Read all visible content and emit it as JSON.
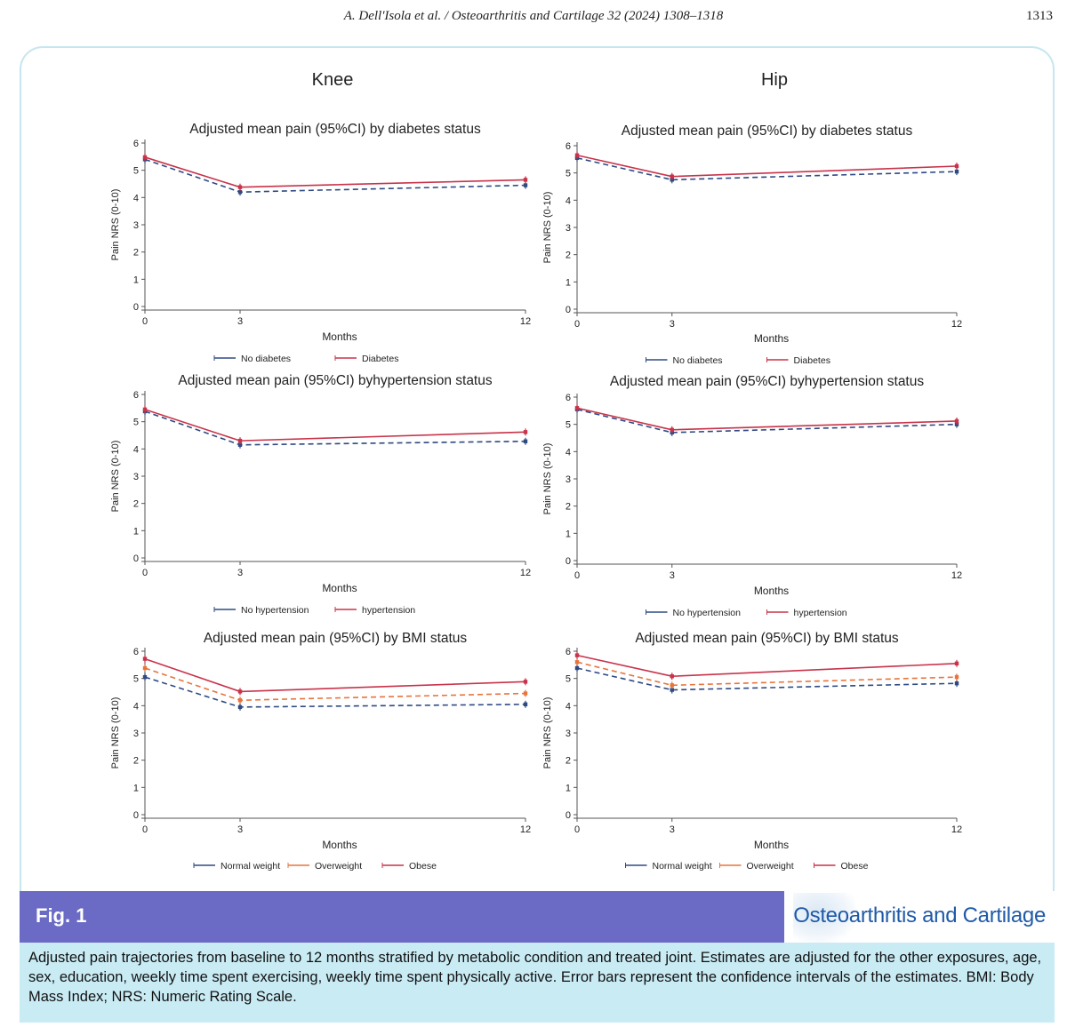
{
  "header": {
    "running_head": "A. Dell'Isola et al. / Osteoarthritis and Cartilage 32 (2024) 1308–1318",
    "page_number": "1313"
  },
  "figure": {
    "label": "Fig. 1",
    "journal": "Osteoarthritis and Cartilage",
    "caption": "Adjusted pain trajectories from baseline to 12 months stratified by metabolic condition and treated joint. Estimates are adjusted for the other exposures, age, sex, education, weekly time spent exercising, weekly time spent physically active. Error bars represent the confidence intervals of the estimates. BMI: Body Mass Index; NRS: Numeric Rating Scale.",
    "column_titles": [
      "Knee",
      "Hip"
    ]
  },
  "colors": {
    "blue": "#2e4a82",
    "red": "#c8334a",
    "orange": "#e8743b"
  },
  "chart_data": [
    {
      "id": "knee-diabetes",
      "type": "line",
      "joint": "Knee",
      "title": "Adjusted mean pain (95%CI) by diabetes status",
      "xlabel": "Months",
      "ylabel": "Pain NRS (0-10)",
      "x": [
        0,
        3,
        12
      ],
      "x_ticks": [
        "0",
        "3",
        "12"
      ],
      "y_ticks": [
        "0",
        "1",
        "2",
        "3",
        "4",
        "5",
        "6"
      ],
      "ylim": [
        0,
        6
      ],
      "series": [
        {
          "name": "No diabetes",
          "color": "#2e4a82",
          "dash": true,
          "values": [
            5.4,
            4.2,
            4.45
          ]
        },
        {
          "name": "Diabetes",
          "color": "#c8334a",
          "dash": false,
          "values": [
            5.48,
            4.38,
            4.65
          ]
        }
      ]
    },
    {
      "id": "hip-diabetes",
      "type": "line",
      "joint": "Hip",
      "title": "Adjusted mean pain (95%CI) by diabetes status",
      "xlabel": "Months",
      "ylabel": "Pain NRS (0-10)",
      "x": [
        0,
        3,
        12
      ],
      "x_ticks": [
        "0",
        "3",
        "12"
      ],
      "y_ticks": [
        "0",
        "1",
        "2",
        "3",
        "4",
        "5",
        "6"
      ],
      "ylim": [
        0,
        6
      ],
      "series": [
        {
          "name": "No diabetes",
          "color": "#2e4a82",
          "dash": true,
          "values": [
            5.55,
            4.75,
            5.05
          ]
        },
        {
          "name": "Diabetes",
          "color": "#c8334a",
          "dash": false,
          "values": [
            5.65,
            4.87,
            5.25
          ]
        }
      ]
    },
    {
      "id": "knee-hypertension",
      "type": "line",
      "joint": "Knee",
      "title": "Adjusted mean pain (95%CI) byhypertension status",
      "xlabel": "Months",
      "ylabel": "Pain NRS (0-10)",
      "x": [
        0,
        3,
        12
      ],
      "x_ticks": [
        "0",
        "3",
        "12"
      ],
      "y_ticks": [
        "0",
        "1",
        "2",
        "3",
        "4",
        "5",
        "6"
      ],
      "ylim": [
        0,
        6
      ],
      "series": [
        {
          "name": "No hypertension",
          "color": "#2e4a82",
          "dash": true,
          "values": [
            5.38,
            4.15,
            4.28
          ]
        },
        {
          "name": "hypertension",
          "color": "#c8334a",
          "dash": false,
          "values": [
            5.45,
            4.3,
            4.62
          ]
        }
      ]
    },
    {
      "id": "hip-hypertension",
      "type": "line",
      "joint": "Hip",
      "title": "Adjusted mean pain (95%CI) byhypertension status",
      "xlabel": "Months",
      "ylabel": "Pain NRS (0-10)",
      "x": [
        0,
        3,
        12
      ],
      "x_ticks": [
        "0",
        "3",
        "12"
      ],
      "y_ticks": [
        "0",
        "1",
        "2",
        "3",
        "4",
        "5",
        "6"
      ],
      "ylim": [
        0,
        6
      ],
      "series": [
        {
          "name": "No hypertension",
          "color": "#2e4a82",
          "dash": true,
          "values": [
            5.55,
            4.7,
            5.0
          ]
        },
        {
          "name": "hypertension",
          "color": "#c8334a",
          "dash": false,
          "values": [
            5.6,
            4.8,
            5.12
          ]
        }
      ]
    },
    {
      "id": "knee-bmi",
      "type": "line",
      "joint": "Knee",
      "title": "Adjusted mean pain (95%CI) by BMI status",
      "xlabel": "Months",
      "ylabel": "Pain NRS (0-10)",
      "x": [
        0,
        3,
        12
      ],
      "x_ticks": [
        "0",
        "3",
        "12"
      ],
      "y_ticks": [
        "0",
        "1",
        "2",
        "3",
        "4",
        "5",
        "6"
      ],
      "ylim": [
        0,
        6
      ],
      "series": [
        {
          "name": "Normal weight",
          "color": "#2e4a82",
          "dash": true,
          "values": [
            5.05,
            3.95,
            4.05
          ]
        },
        {
          "name": "Overweight",
          "color": "#e8743b",
          "dash": true,
          "values": [
            5.38,
            4.2,
            4.45
          ]
        },
        {
          "name": "Obese",
          "color": "#c8334a",
          "dash": false,
          "values": [
            5.72,
            4.52,
            4.88
          ]
        }
      ]
    },
    {
      "id": "hip-bmi",
      "type": "line",
      "joint": "Hip",
      "title": "Adjusted mean pain (95%CI) by BMI status",
      "xlabel": "Months",
      "ylabel": "Pain NRS (0-10)",
      "x": [
        0,
        3,
        12
      ],
      "x_ticks": [
        "0",
        "3",
        "12"
      ],
      "y_ticks": [
        "0",
        "1",
        "2",
        "3",
        "4",
        "5",
        "6"
      ],
      "ylim": [
        0,
        6
      ],
      "series": [
        {
          "name": "Normal weight",
          "color": "#2e4a82",
          "dash": true,
          "values": [
            5.38,
            4.58,
            4.82
          ]
        },
        {
          "name": "Overweight",
          "color": "#e8743b",
          "dash": true,
          "values": [
            5.6,
            4.75,
            5.05
          ]
        },
        {
          "name": "Obese",
          "color": "#c8334a",
          "dash": false,
          "values": [
            5.85,
            5.08,
            5.55
          ]
        }
      ]
    }
  ]
}
